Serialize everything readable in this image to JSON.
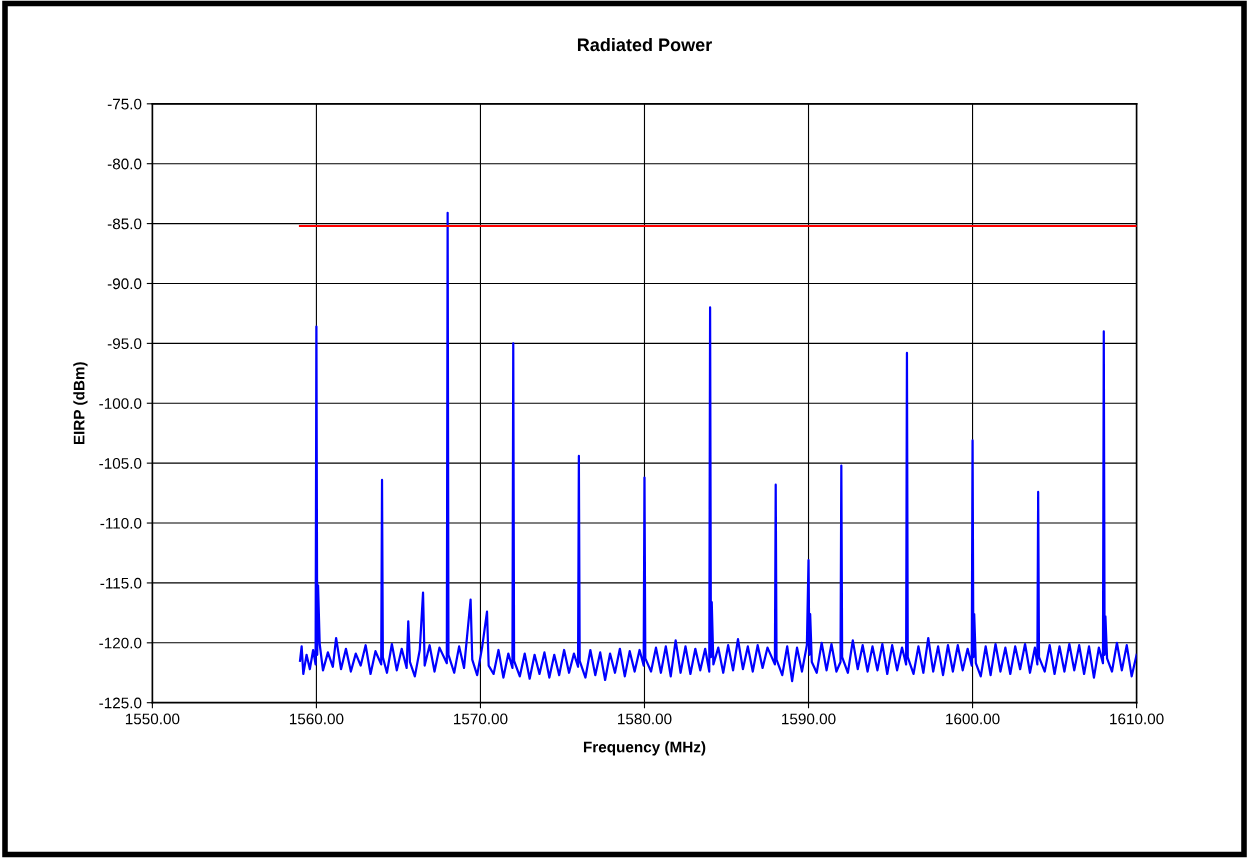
{
  "chart_data": {
    "type": "line",
    "title": "Radiated Power",
    "xlabel": "Frequency (MHz)",
    "ylabel": "EIRP (dBm)",
    "xlim": [
      1550,
      1610
    ],
    "ylim": [
      -125,
      -75
    ],
    "xticks": [
      {
        "value": 1550,
        "label": "1550.00"
      },
      {
        "value": 1560,
        "label": "1560.00"
      },
      {
        "value": 1570,
        "label": "1570.00"
      },
      {
        "value": 1580,
        "label": "1580.00"
      },
      {
        "value": 1590,
        "label": "1590.00"
      },
      {
        "value": 1600,
        "label": "1600.00"
      },
      {
        "value": 1610,
        "label": "1610.00"
      }
    ],
    "yticks": [
      {
        "value": -125,
        "label": "-125.0"
      },
      {
        "value": -120,
        "label": "-120.0"
      },
      {
        "value": -115,
        "label": "-115.0"
      },
      {
        "value": -110,
        "label": "-110.0"
      },
      {
        "value": -105,
        "label": "-105.0"
      },
      {
        "value": -100,
        "label": "-100.0"
      },
      {
        "value": -95,
        "label": "-95.0"
      },
      {
        "value": -90,
        "label": "-90.0"
      },
      {
        "value": -85,
        "label": "-85.0"
      },
      {
        "value": -80,
        "label": "-80.0"
      },
      {
        "value": -75,
        "label": "-75.0"
      }
    ],
    "grid": true,
    "marker": "none",
    "line_style": "solid",
    "series": [
      {
        "color": "#0000ff",
        "x": [
          1559.0,
          1559.1,
          1559.2,
          1559.4,
          1559.6,
          1559.8,
          1559.95,
          1560.0,
          1560.05,
          1560.1,
          1560.2,
          1560.4,
          1560.7,
          1561.0,
          1561.2,
          1561.5,
          1561.8,
          1562.1,
          1562.4,
          1562.7,
          1563.0,
          1563.3,
          1563.6,
          1563.95,
          1564.0,
          1564.05,
          1564.3,
          1564.6,
          1564.9,
          1565.2,
          1565.5,
          1565.6,
          1565.7,
          1566.0,
          1566.3,
          1566.5,
          1566.6,
          1566.9,
          1567.2,
          1567.5,
          1567.95,
          1568.0,
          1568.05,
          1568.4,
          1568.7,
          1569.0,
          1569.4,
          1569.5,
          1569.8,
          1570.1,
          1570.4,
          1570.5,
          1570.8,
          1571.1,
          1571.4,
          1571.7,
          1571.95,
          1572.0,
          1572.05,
          1572.4,
          1572.7,
          1573.0,
          1573.3,
          1573.6,
          1573.9,
          1574.2,
          1574.5,
          1574.8,
          1575.1,
          1575.4,
          1575.7,
          1575.95,
          1576.0,
          1576.05,
          1576.4,
          1576.7,
          1577.0,
          1577.3,
          1577.6,
          1577.9,
          1578.2,
          1578.5,
          1578.8,
          1579.1,
          1579.4,
          1579.7,
          1579.95,
          1580.0,
          1580.05,
          1580.4,
          1580.7,
          1581.0,
          1581.3,
          1581.6,
          1581.9,
          1582.2,
          1582.5,
          1582.8,
          1583.1,
          1583.4,
          1583.7,
          1583.95,
          1584.0,
          1584.05,
          1584.1,
          1584.2,
          1584.5,
          1584.8,
          1585.1,
          1585.4,
          1585.7,
          1586.0,
          1586.3,
          1586.6,
          1586.9,
          1587.2,
          1587.5,
          1587.95,
          1588.0,
          1588.05,
          1588.4,
          1588.7,
          1589.0,
          1589.3,
          1589.6,
          1589.9,
          1590.0,
          1590.05,
          1590.1,
          1590.2,
          1590.5,
          1590.8,
          1591.1,
          1591.4,
          1591.7,
          1591.95,
          1592.0,
          1592.05,
          1592.4,
          1592.7,
          1593.0,
          1593.3,
          1593.6,
          1593.9,
          1594.2,
          1594.5,
          1594.8,
          1595.1,
          1595.4,
          1595.7,
          1595.95,
          1596.0,
          1596.05,
          1596.4,
          1596.7,
          1597.0,
          1597.3,
          1597.6,
          1597.9,
          1598.2,
          1598.5,
          1598.8,
          1599.1,
          1599.4,
          1599.7,
          1599.95,
          1600.0,
          1600.05,
          1600.1,
          1600.2,
          1600.5,
          1600.8,
          1601.1,
          1601.4,
          1601.7,
          1602.0,
          1602.3,
          1602.6,
          1602.9,
          1603.2,
          1603.5,
          1603.8,
          1603.95,
          1604.0,
          1604.05,
          1604.4,
          1604.7,
          1605.0,
          1605.3,
          1605.6,
          1605.9,
          1606.2,
          1606.5,
          1606.8,
          1607.1,
          1607.4,
          1607.7,
          1607.95,
          1608.0,
          1608.05,
          1608.1,
          1608.2,
          1608.5,
          1608.8,
          1609.1,
          1609.4,
          1609.7,
          1610.0
        ],
        "values": [
          -121.5,
          -120.3,
          -122.6,
          -121.0,
          -122.2,
          -120.6,
          -121.8,
          -93.6,
          -121.0,
          -115.2,
          -120.1,
          -122.3,
          -120.8,
          -122.0,
          -119.6,
          -122.2,
          -120.5,
          -122.4,
          -120.9,
          -121.9,
          -120.2,
          -122.6,
          -120.7,
          -121.8,
          -106.4,
          -121.2,
          -122.5,
          -120.1,
          -122.3,
          -120.5,
          -122.1,
          -118.2,
          -121.6,
          -122.8,
          -120.6,
          -115.8,
          -121.9,
          -120.2,
          -122.4,
          -120.4,
          -121.7,
          -84.1,
          -121.0,
          -122.5,
          -120.3,
          -122.1,
          -116.4,
          -121.4,
          -122.7,
          -120.4,
          -117.4,
          -121.9,
          -122.6,
          -120.6,
          -122.9,
          -120.9,
          -122.1,
          -95.0,
          -121.5,
          -122.8,
          -120.9,
          -123.0,
          -121.0,
          -122.6,
          -120.8,
          -122.9,
          -121.0,
          -122.7,
          -120.6,
          -122.5,
          -120.9,
          -122.0,
          -104.4,
          -121.5,
          -122.9,
          -120.6,
          -122.7,
          -120.8,
          -123.1,
          -120.9,
          -122.5,
          -120.5,
          -122.8,
          -120.7,
          -122.4,
          -120.6,
          -121.9,
          -106.2,
          -121.3,
          -122.4,
          -120.4,
          -122.5,
          -120.3,
          -122.8,
          -119.8,
          -122.5,
          -120.3,
          -122.6,
          -120.5,
          -122.3,
          -120.5,
          -122.4,
          -92.0,
          -121.2,
          -116.6,
          -121.8,
          -120.4,
          -122.5,
          -120.2,
          -122.3,
          -119.7,
          -122.2,
          -120.3,
          -122.4,
          -120.2,
          -122.1,
          -120.4,
          -121.8,
          -106.8,
          -121.4,
          -122.7,
          -120.3,
          -123.2,
          -120.4,
          -122.4,
          -120.2,
          -113.1,
          -121.0,
          -117.6,
          -121.6,
          -122.5,
          -120.0,
          -122.3,
          -120.1,
          -122.4,
          -121.6,
          -105.2,
          -121.2,
          -122.5,
          -119.8,
          -122.2,
          -120.2,
          -122.4,
          -120.3,
          -122.3,
          -120.1,
          -122.6,
          -120.2,
          -122.3,
          -120.4,
          -121.8,
          -95.8,
          -121.2,
          -122.6,
          -120.3,
          -122.5,
          -119.6,
          -122.4,
          -120.3,
          -122.7,
          -120.2,
          -122.4,
          -120.2,
          -122.3,
          -120.5,
          -121.9,
          -103.1,
          -121.2,
          -117.6,
          -121.7,
          -122.8,
          -120.3,
          -122.7,
          -120.1,
          -122.4,
          -120.4,
          -122.6,
          -120.3,
          -122.2,
          -120.1,
          -122.5,
          -120.4,
          -121.8,
          -107.4,
          -121.2,
          -122.4,
          -120.2,
          -122.6,
          -120.3,
          -122.4,
          -120.1,
          -122.3,
          -120.2,
          -122.6,
          -120.3,
          -122.9,
          -120.4,
          -121.7,
          -94.0,
          -121.0,
          -117.8,
          -121.3,
          -122.4,
          -120.0,
          -122.3,
          -120.2,
          -122.8,
          -121.0
        ]
      },
      {
        "color": "#ff0000",
        "x": [
          1559.0,
          1610.0
        ],
        "values": [
          -85.2,
          -85.2
        ]
      }
    ]
  }
}
